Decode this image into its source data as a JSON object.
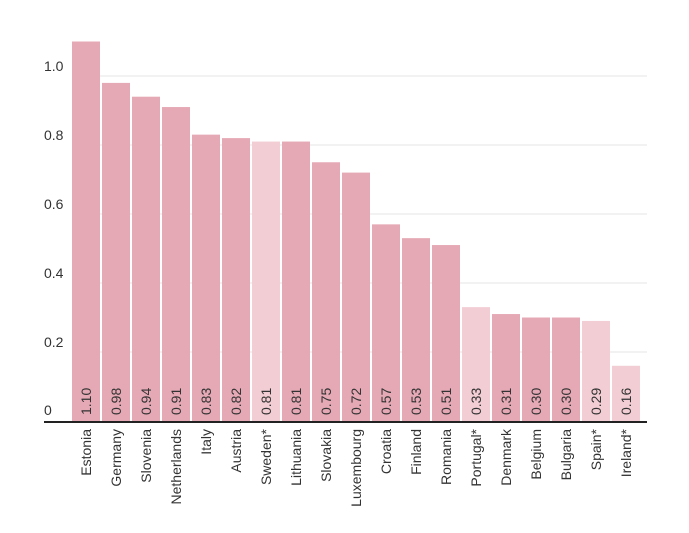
{
  "chart_data": {
    "type": "bar",
    "categories": [
      "Estonia",
      "Germany",
      "Slovenia",
      "Netherlands",
      "Italy",
      "Austria",
      "Sweden*",
      "Lithuania",
      "Slovakia",
      "Luxembourg",
      "Croatia",
      "Finland",
      "Romania",
      "Portugal*",
      "Denmark",
      "Belgium",
      "Bulgaria",
      "Spain*",
      "Ireland*"
    ],
    "values": [
      1.1,
      0.98,
      0.94,
      0.91,
      0.83,
      0.82,
      0.81,
      0.81,
      0.75,
      0.72,
      0.57,
      0.53,
      0.51,
      0.33,
      0.31,
      0.3,
      0.3,
      0.29,
      0.16
    ],
    "value_labels": [
      "1.10",
      "0.98",
      "0.94",
      "0.91",
      "0.83",
      "0.82",
      "0.81",
      "0.81",
      "0.75",
      "0.72",
      "0.57",
      "0.53",
      "0.51",
      "0.33",
      "0.31",
      "0.30",
      "0.30",
      "0.29",
      "0.16"
    ],
    "highlighted": [
      false,
      false,
      false,
      false,
      false,
      false,
      true,
      false,
      false,
      false,
      false,
      false,
      false,
      true,
      false,
      false,
      false,
      true,
      true
    ],
    "yticks": [
      0,
      0.2,
      0.4,
      0.6,
      0.8,
      1.0
    ],
    "ytick_labels": [
      "0",
      "0.2",
      "0.4",
      "0.6",
      "0.8",
      "1.0"
    ],
    "ylim": [
      0,
      1.1
    ],
    "grid": true,
    "colors": {
      "bar": "#e5a9b5",
      "bar_light": "#f2cdd4",
      "grid": "#e6e6e6",
      "axis": "#222222",
      "text": "#333333"
    }
  }
}
